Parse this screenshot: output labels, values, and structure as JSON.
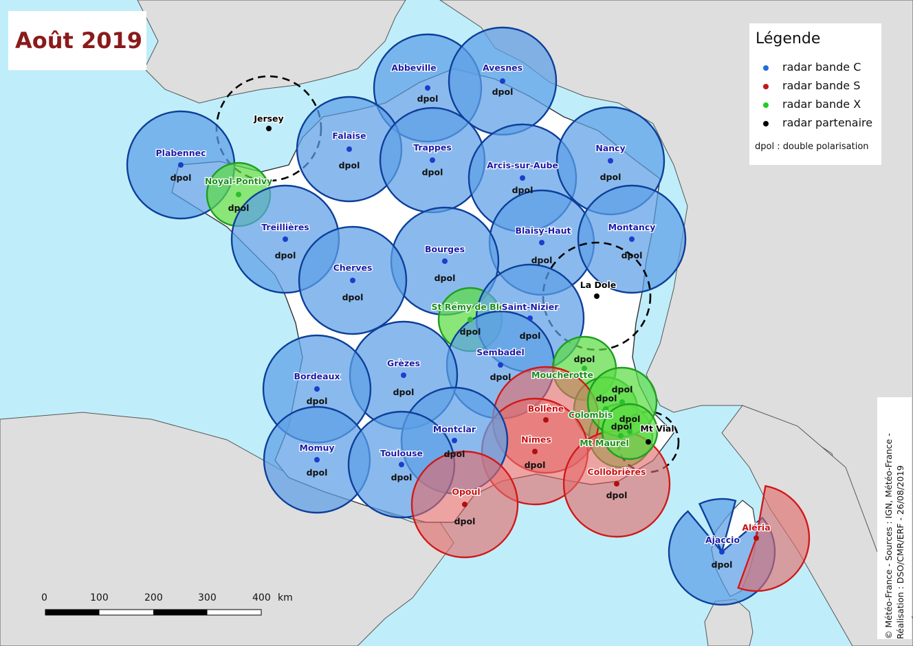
{
  "title": "Août 2019",
  "legend": {
    "title": "Légende",
    "items": [
      {
        "label": "radar bande C",
        "color": "#1f6fd8"
      },
      {
        "label": "radar bande S",
        "color": "#c01a1a"
      },
      {
        "label": "radar bande X",
        "color": "#22cc22"
      },
      {
        "label": "radar partenaire",
        "color": "#000000"
      }
    ],
    "note": "dpol : double polarisation"
  },
  "dpol_label": "dpol",
  "scale": {
    "ticks": [
      "0",
      "100",
      "200",
      "300",
      "400"
    ],
    "unit": "km"
  },
  "credit": {
    "line1": "© Météo-France - Sources : IGN, Météo-France -",
    "line2": "Réalisation : DSO/CMR/ERF - 26/08/2019"
  },
  "colors": {
    "sea": "#bfeefa",
    "land_other": "#dedede",
    "band_c_fill": "#5d9fe6",
    "band_c_stroke": "#0d3f9a",
    "band_c_label": "#1a1aa8",
    "band_s_fill": "#e36a6a",
    "band_s_stroke": "#d21818",
    "band_s_label": "#c81010",
    "band_x_fill": "#5ddc45",
    "band_x_stroke": "#1e9e1e",
    "band_x_label": "#1d8d1d"
  },
  "radars": [
    {
      "name": "Abbeville",
      "band": "C",
      "dpol": true
    },
    {
      "name": "Avesnes",
      "band": "C",
      "dpol": true
    },
    {
      "name": "Jersey",
      "band": "partner",
      "dpol": false
    },
    {
      "name": "Falaise",
      "band": "C",
      "dpol": true
    },
    {
      "name": "Trappes",
      "band": "C",
      "dpol": true
    },
    {
      "name": "Arcis-sur-Aube",
      "band": "C",
      "dpol": true
    },
    {
      "name": "Nancy",
      "band": "C",
      "dpol": true
    },
    {
      "name": "Plabennec",
      "band": "C",
      "dpol": true
    },
    {
      "name": "Noyal-Pontivy",
      "band": "X",
      "dpol": true
    },
    {
      "name": "Treillières",
      "band": "C",
      "dpol": true
    },
    {
      "name": "Blaisy-Haut",
      "band": "C",
      "dpol": true
    },
    {
      "name": "Montancy",
      "band": "C",
      "dpol": true
    },
    {
      "name": "Bourges",
      "band": "C",
      "dpol": true
    },
    {
      "name": "Cherves",
      "band": "C",
      "dpol": true
    },
    {
      "name": "La Dole",
      "band": "partner",
      "dpol": false
    },
    {
      "name": "St Rémy de Blot",
      "band": "X",
      "dpol": true
    },
    {
      "name": "Saint-Nizier",
      "band": "C",
      "dpol": true
    },
    {
      "name": "Sembadel",
      "band": "C",
      "dpol": true
    },
    {
      "name": "Grèzes",
      "band": "C",
      "dpol": true
    },
    {
      "name": "Bordeaux",
      "band": "C",
      "dpol": true
    },
    {
      "name": "Moucherotte",
      "band": "X",
      "dpol": true
    },
    {
      "name": "Colombis",
      "band": "X",
      "dpol": true
    },
    {
      "name": "Mt Maurel",
      "band": "X",
      "dpol": true
    },
    {
      "name": "Mt Vial",
      "band": "partner",
      "dpol": false
    },
    {
      "name": "Bollène",
      "band": "S",
      "dpol": false
    },
    {
      "name": "Nîmes",
      "band": "S",
      "dpol": true
    },
    {
      "name": "Montclar",
      "band": "C",
      "dpol": true
    },
    {
      "name": "Momuy",
      "band": "C",
      "dpol": true
    },
    {
      "name": "Toulouse",
      "band": "C",
      "dpol": true
    },
    {
      "name": "Opoul",
      "band": "S",
      "dpol": true
    },
    {
      "name": "Collobrières",
      "band": "S",
      "dpol": true
    },
    {
      "name": "Ajaccio",
      "band": "C",
      "dpol": true
    },
    {
      "name": "Aléria",
      "band": "S",
      "dpol": false
    }
  ]
}
